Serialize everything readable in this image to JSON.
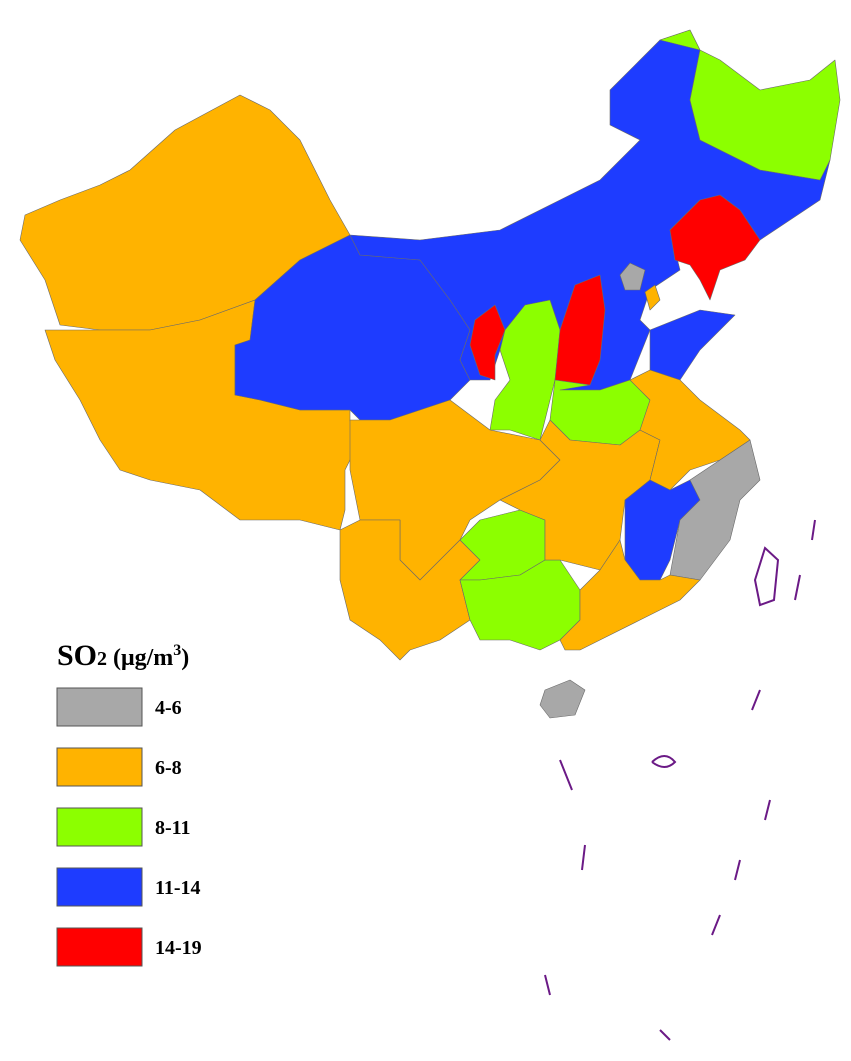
{
  "legend": {
    "title": [
      "SO",
      "2",
      " (μg/m",
      "3",
      ")"
    ],
    "items": [
      {
        "label": "4-6",
        "color": "#a8a8a8"
      },
      {
        "label": "6-8",
        "color": "#ffb300"
      },
      {
        "label": "8-11",
        "color": "#8cff00"
      },
      {
        "label": "11-14",
        "color": "#1e3cff"
      },
      {
        "label": "14-19",
        "color": "#ff0000"
      }
    ]
  }
}
